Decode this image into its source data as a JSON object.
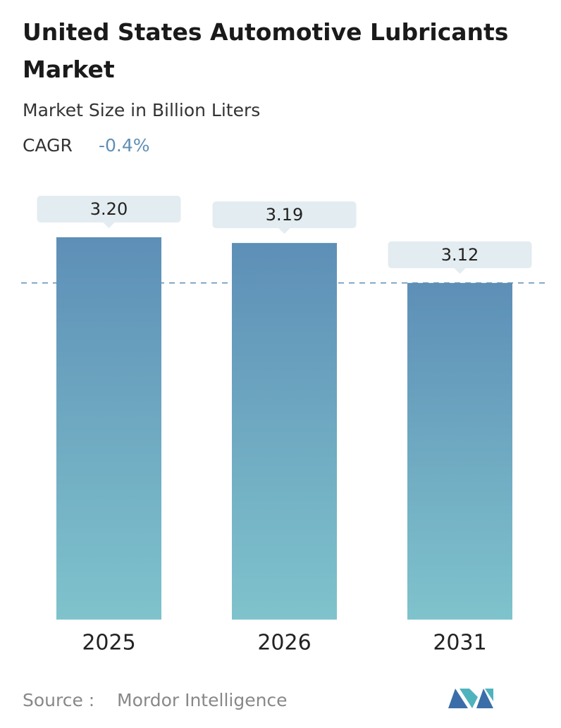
{
  "chart_data": {
    "type": "bar",
    "title": "United States Automotive Lubricants Market",
    "subtitle": "Market Size in Billion Liters",
    "cagr_label": "CAGR",
    "cagr_value": "-0.4%",
    "categories": [
      "2025",
      "2026",
      "2031"
    ],
    "values": [
      3.2,
      3.19,
      3.12
    ],
    "value_labels": [
      "3.20",
      "3.19",
      "3.12"
    ],
    "ylim": [
      2.53,
      3.2
    ],
    "colors": [
      "#5e8fb7",
      "#7fc3cc"
    ],
    "source_label": "Source :",
    "source": "Mordor Intelligence"
  }
}
